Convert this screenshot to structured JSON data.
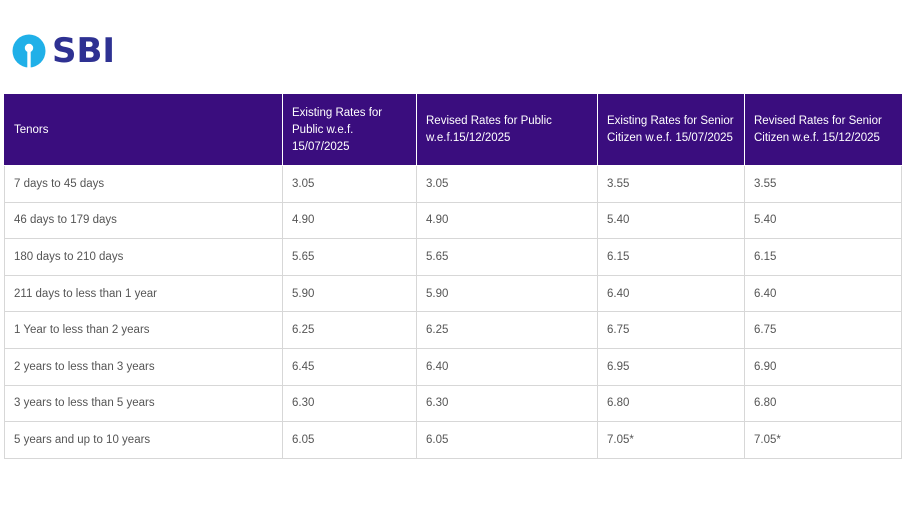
{
  "brand": {
    "name": "SBI",
    "logo_icon": "sbi-keyhole-logo-icon",
    "color": "#2e3192",
    "accent": "#20b0e8"
  },
  "table": {
    "header_bg": "#3a0d7e",
    "headers": [
      "Tenors",
      "Existing Rates for Public w.e.f. 15/07/2025",
      "Revised Rates for Public w.e.f.15/12/2025",
      "Existing Rates for Senior Citizen w.e.f. 15/07/2025",
      "Revised Rates for Senior Citizen  w.e.f. 15/12/2025"
    ],
    "rows": [
      [
        "7 days to 45 days",
        "3.05",
        "3.05",
        "3.55",
        "3.55"
      ],
      [
        "46 days to 179 days",
        "4.90",
        "4.90",
        "5.40",
        "5.40"
      ],
      [
        "180 days to 210 days",
        "5.65",
        "5.65",
        "6.15",
        "6.15"
      ],
      [
        "211 days to less than 1 year",
        "5.90",
        "5.90",
        "6.40",
        "6.40"
      ],
      [
        "1 Year to less than 2 years",
        "6.25",
        "6.25",
        "6.75",
        "6.75"
      ],
      [
        "2 years to less than 3 years",
        "6.45",
        "6.40",
        "6.95",
        "6.90"
      ],
      [
        "3 years to less than 5 years",
        "6.30",
        "6.30",
        "6.80",
        "6.80"
      ],
      [
        "5 years and up to 10 years",
        "6.05",
        "6.05",
        " 7.05*",
        " 7.05*"
      ]
    ]
  }
}
